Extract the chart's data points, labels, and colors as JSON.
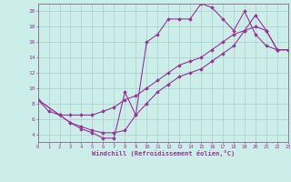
{
  "background_color": "#cceee8",
  "grid_color": "#aacccc",
  "line_color": "#993399",
  "marker_color": "#993399",
  "xlim": [
    0,
    23
  ],
  "ylim": [
    3,
    21
  ],
  "xticks": [
    0,
    1,
    2,
    3,
    4,
    5,
    6,
    7,
    8,
    9,
    10,
    11,
    12,
    13,
    14,
    15,
    16,
    17,
    18,
    19,
    20,
    21,
    22,
    23
  ],
  "yticks": [
    4,
    6,
    8,
    10,
    12,
    14,
    16,
    18,
    20
  ],
  "xlabel": "Windchill (Refroidissement éolien,°C)",
  "series": [
    {
      "x": [
        0,
        1,
        2,
        3,
        4,
        5,
        6,
        7,
        8,
        9,
        10,
        11,
        12,
        13,
        14,
        15,
        16,
        17,
        18,
        19,
        20,
        21,
        22,
        23
      ],
      "y": [
        8.5,
        7.0,
        6.5,
        5.5,
        4.7,
        4.2,
        3.5,
        3.5,
        9.5,
        6.5,
        16.0,
        17.0,
        19.0,
        19.0,
        19.0,
        21.0,
        20.5,
        19.0,
        17.5,
        20.0,
        17.0,
        15.5,
        15.0,
        15.0
      ]
    },
    {
      "x": [
        0,
        2,
        3,
        4,
        5,
        6,
        7,
        8,
        9,
        10,
        11,
        12,
        13,
        14,
        15,
        16,
        17,
        18,
        19,
        20,
        21,
        22,
        23
      ],
      "y": [
        8.5,
        6.5,
        6.5,
        6.5,
        6.5,
        7.0,
        7.5,
        8.5,
        9.0,
        10.0,
        11.0,
        12.0,
        13.0,
        13.5,
        14.0,
        15.0,
        16.0,
        17.0,
        17.5,
        18.0,
        17.5,
        15.0,
        15.0
      ]
    },
    {
      "x": [
        0,
        2,
        3,
        4,
        5,
        6,
        7,
        8,
        9,
        10,
        11,
        12,
        13,
        14,
        15,
        16,
        17,
        18,
        19,
        20,
        21,
        22,
        23
      ],
      "y": [
        8.5,
        6.5,
        5.5,
        5.0,
        4.5,
        4.2,
        4.2,
        4.5,
        6.5,
        8.0,
        9.5,
        10.5,
        11.5,
        12.0,
        12.5,
        13.5,
        14.5,
        15.5,
        17.5,
        19.5,
        17.5,
        15.0,
        15.0
      ]
    }
  ]
}
